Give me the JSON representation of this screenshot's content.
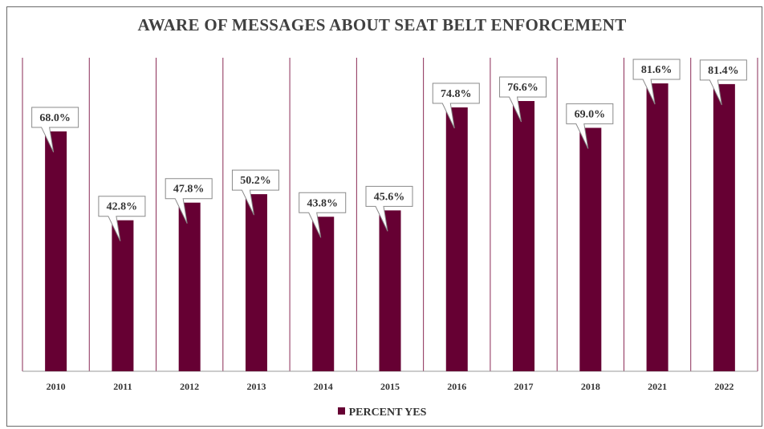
{
  "chart_data": {
    "type": "bar",
    "title": "AWARE OF MESSAGES ABOUT SEAT BELT ENFORCEMENT",
    "categories": [
      "2010",
      "2011",
      "2012",
      "2013",
      "2014",
      "2015",
      "2016",
      "2017",
      "2018",
      "2021",
      "2022"
    ],
    "series": [
      {
        "name": "PERCENT YES",
        "values": [
          68.0,
          42.8,
          47.8,
          50.2,
          43.8,
          45.6,
          74.8,
          76.6,
          69.0,
          81.6,
          81.4
        ],
        "labels": [
          "68.0%",
          "42.8%",
          "47.8%",
          "50.2%",
          "43.8%",
          "45.6%",
          "74.8%",
          "76.6%",
          "69.0%",
          "81.6%",
          "81.4%"
        ]
      }
    ],
    "ylim": [
      0,
      90
    ],
    "grid": "vertical category separators",
    "legend": "bottom-center",
    "colors": {
      "bar": "#660033",
      "separator": "#8a2a55",
      "axis": "#9a9a9a"
    }
  }
}
